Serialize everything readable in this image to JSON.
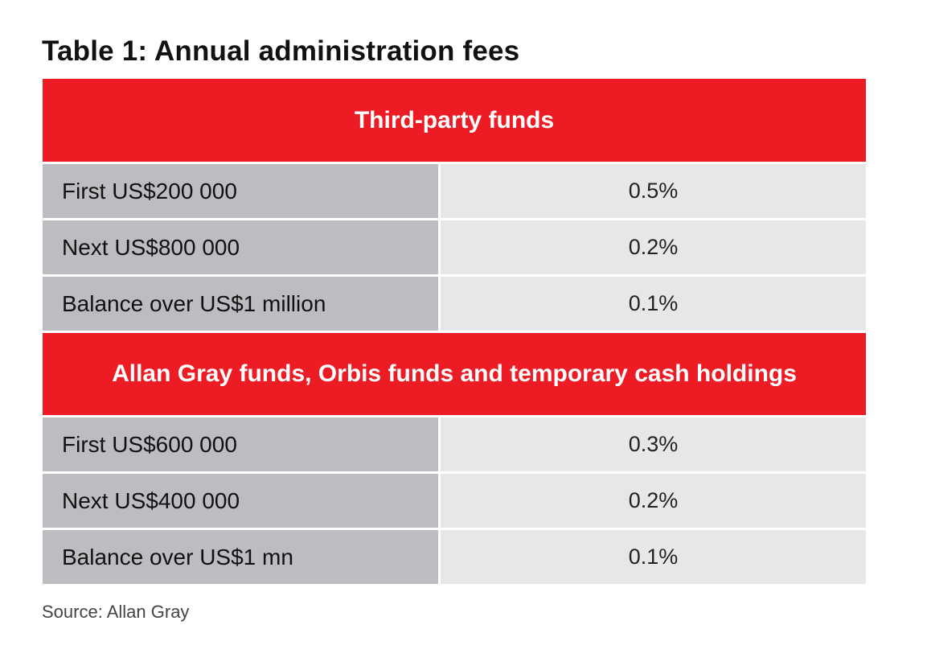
{
  "title": "Table 1: Annual administration fees",
  "colors": {
    "header_red": "#ed1c24",
    "label_gray": "#bcbdc0",
    "value_gray": "#e6e7e8"
  },
  "sections": [
    {
      "header": "Third-party funds",
      "rows": [
        {
          "label": "First US$200 000",
          "value": "0.5%"
        },
        {
          "label": "Next US$800 000",
          "value": "0.2%"
        },
        {
          "label": "Balance over US$1 million",
          "value": "0.1%"
        }
      ]
    },
    {
      "header": "Allan Gray funds, Orbis funds and temporary cash holdings",
      "rows": [
        {
          "label": "First US$600 000",
          "value": "0.3%"
        },
        {
          "label": "Next US$400 000",
          "value": "0.2%"
        },
        {
          "label": "Balance over US$1 mn",
          "value": "0.1%"
        }
      ]
    }
  ],
  "source": "Source: Allan Gray"
}
